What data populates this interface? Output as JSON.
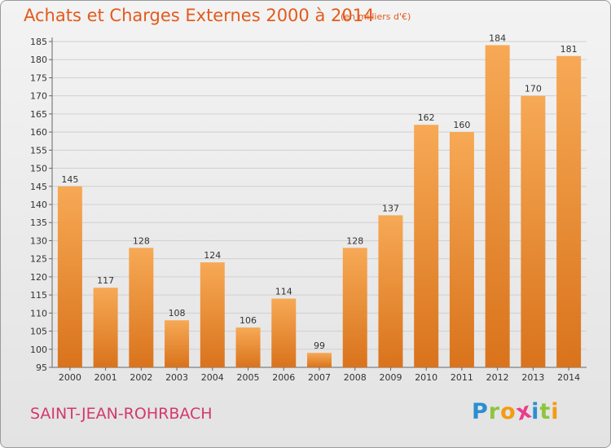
{
  "header": {
    "title": "Achats et Charges Externes 2000 à 2014",
    "subtitle": "(en milliers d'€)"
  },
  "footer": {
    "town": "SAINT-JEAN-ROHRBACH",
    "logo_letters": [
      {
        "char": "P",
        "color": "#2a8fd0"
      },
      {
        "char": "r",
        "color": "#8cc63f"
      },
      {
        "char": "o",
        "color": "#f39c12"
      },
      {
        "char": "x",
        "color": "#e83e8c"
      },
      {
        "char": "i",
        "color": "#2a8fd0"
      },
      {
        "char": "t",
        "color": "#8cc63f"
      },
      {
        "char": "i",
        "color": "#f39c12"
      }
    ]
  },
  "chart_data": {
    "type": "bar",
    "categories": [
      "2000",
      "2001",
      "2002",
      "2003",
      "2004",
      "2005",
      "2006",
      "2007",
      "2008",
      "2009",
      "2010",
      "2011",
      "2012",
      "2013",
      "2014"
    ],
    "values": [
      145,
      117,
      128,
      108,
      124,
      106,
      114,
      99,
      128,
      137,
      162,
      160,
      184,
      170,
      181
    ],
    "ylim": [
      95,
      185
    ],
    "yticks": [
      95,
      100,
      105,
      110,
      115,
      120,
      125,
      130,
      135,
      140,
      145,
      150,
      155,
      160,
      165,
      170,
      175,
      180,
      185
    ],
    "grid": true,
    "bar_color_top": "#f7a955",
    "bar_color_bottom": "#d9731c",
    "label_color": "#333333"
  }
}
